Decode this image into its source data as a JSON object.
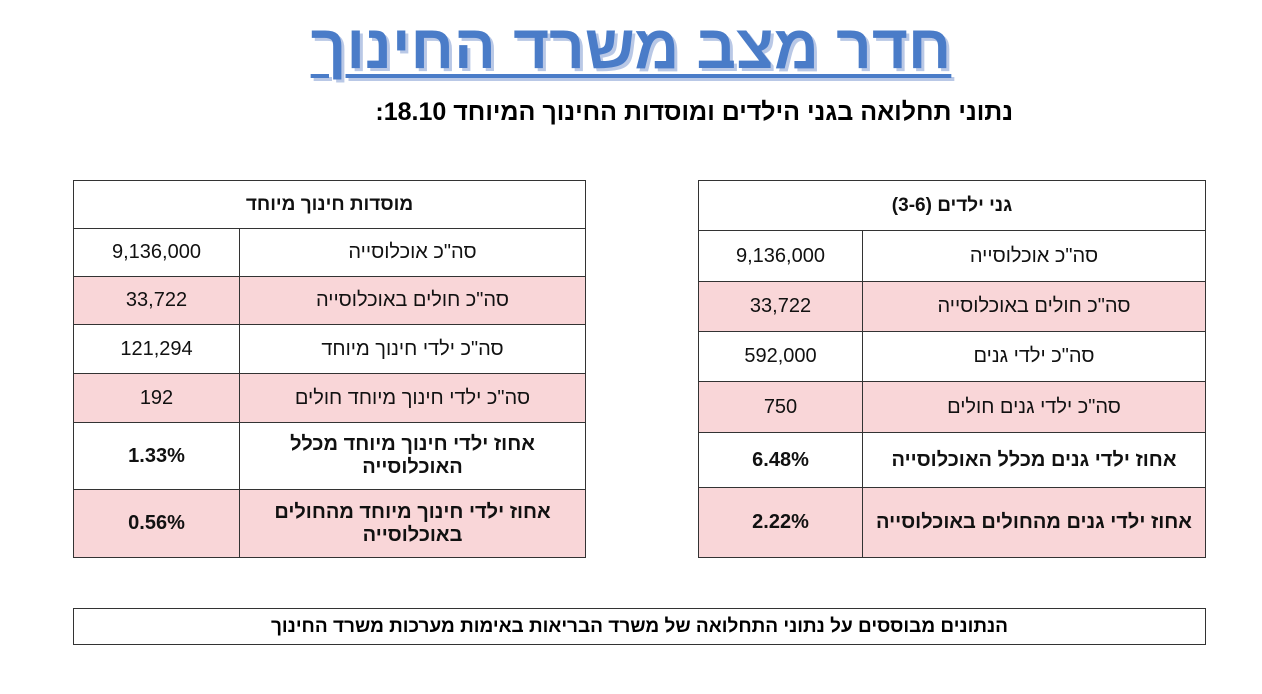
{
  "title": "חדר מצב משרד החינוך",
  "subtitle": "נתוני תחלואה בגני הילדים ומוסדות החינוך המיוחד 18.10:",
  "colors": {
    "title": "#4a7cc8",
    "highlight_row": "#f9d6d8"
  },
  "kindergartens": {
    "header": "גני ילדים (3-6)",
    "rows": [
      {
        "label": "סה\"כ אוכלוסייה",
        "value": "9,136,000"
      },
      {
        "label": "סה\"כ חולים באוכלוסייה",
        "value": "33,722"
      },
      {
        "label": "סה\"כ ילדי גנים",
        "value": "592,000"
      },
      {
        "label": "סה\"כ ילדי גנים חולים",
        "value": "750"
      },
      {
        "label": "אחוז ילדי גנים מכלל האוכלוסייה",
        "value": "6.48%"
      },
      {
        "label": "אחוז ילדי גנים מהחולים באוכלוסייה",
        "value": "2.22%"
      }
    ]
  },
  "special_ed": {
    "header": "מוסדות חינוך מיוחד",
    "rows": [
      {
        "label": "סה\"כ אוכלוסייה",
        "value": "9,136,000"
      },
      {
        "label": "סה\"כ חולים באוכלוסייה",
        "value": "33,722"
      },
      {
        "label": "סה\"כ ילדי חינוך מיוחד",
        "value": "121,294"
      },
      {
        "label": "סה\"כ ילדי חינוך מיוחד חולים",
        "value": "192"
      },
      {
        "label": "אחוז ילדי חינוך מיוחד מכלל האוכלוסייה",
        "value": "1.33%"
      },
      {
        "label": "אחוז ילדי חינוך מיוחד מהחולים באוכלוסייה",
        "value": "0.56%"
      }
    ]
  },
  "footer": "הנתונים מבוססים על נתוני התחלואה של משרד הבריאות באימות מערכות משרד החינוך"
}
